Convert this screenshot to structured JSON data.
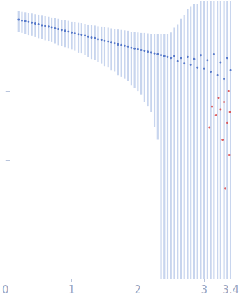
{
  "chart_data": {
    "type": "scatter",
    "log": "y",
    "tick_labels": "x",
    "grid": false,
    "xlim": [
      0,
      3.4
    ],
    "xticks": [
      0,
      1,
      2,
      3
    ],
    "ylim": [
      0.0002,
      2
    ],
    "yticks": [
      0.001,
      0.01,
      0.1,
      1
    ],
    "series": [
      {
        "color": "#3a62c0",
        "x": [
          0.2,
          0.25,
          0.3,
          0.35,
          0.4,
          0.45,
          0.5,
          0.55,
          0.6,
          0.65,
          0.7,
          0.75,
          0.8,
          0.85,
          0.9,
          0.95,
          1.0,
          1.05,
          1.1,
          1.15,
          1.2,
          1.25,
          1.3,
          1.35,
          1.4,
          1.45,
          1.5,
          1.55,
          1.6,
          1.65,
          1.7,
          1.75,
          1.8,
          1.85,
          1.9,
          1.95,
          2.0,
          2.05,
          2.1,
          2.15,
          2.2,
          2.25,
          2.3,
          2.35,
          2.4,
          2.45,
          2.5,
          2.55,
          2.6,
          2.65,
          2.7,
          2.75,
          2.8,
          2.85,
          2.9,
          2.95,
          3.0,
          3.05,
          3.1,
          3.15,
          3.2,
          3.25,
          3.3,
          3.35,
          3.4
        ],
        "values": [
          1.07,
          1.04,
          1.02,
          0.99,
          0.97,
          0.94,
          0.92,
          0.89,
          0.87,
          0.85,
          0.83,
          0.8,
          0.78,
          0.76,
          0.74,
          0.72,
          0.7,
          0.68,
          0.66,
          0.65,
          0.63,
          0.61,
          0.59,
          0.58,
          0.56,
          0.55,
          0.53,
          0.52,
          0.5,
          0.49,
          0.47,
          0.46,
          0.45,
          0.44,
          0.42,
          0.41,
          0.4,
          0.39,
          0.38,
          0.37,
          0.36,
          0.35,
          0.34,
          0.33,
          0.32,
          0.31,
          0.3,
          0.32,
          0.27,
          0.3,
          0.25,
          0.31,
          0.24,
          0.29,
          0.22,
          0.33,
          0.21,
          0.28,
          0.19,
          0.34,
          0.17,
          0.26,
          0.15,
          0.3,
          0.2
        ],
        "errors": [
          0.35,
          0.35,
          0.35,
          0.35,
          0.34,
          0.34,
          0.34,
          0.33,
          0.33,
          0.33,
          0.32,
          0.32,
          0.32,
          0.31,
          0.31,
          0.31,
          0.3,
          0.3,
          0.3,
          0.3,
          0.3,
          0.3,
          0.3,
          0.3,
          0.3,
          0.3,
          0.3,
          0.3,
          0.3,
          0.3,
          0.3,
          0.3,
          0.3,
          0.3,
          0.3,
          0.3,
          0.3,
          0.3,
          0.31,
          0.31,
          0.31,
          0.32,
          0.32,
          0.33,
          0.34,
          0.36,
          0.4,
          0.5,
          0.65,
          0.8,
          1.0,
          1.2,
          1.4,
          1.5,
          1.6,
          1.7,
          1.8,
          1.9,
          1.9,
          1.9,
          1.9,
          1.9,
          1.9,
          1.9,
          1.9
        ]
      },
      {
        "color": "#d93a3a",
        "x": [
          3.08,
          3.12,
          3.18,
          3.22,
          3.25,
          3.28,
          3.3,
          3.32,
          3.35,
          3.37,
          3.38,
          3.39
        ],
        "values": [
          0.03,
          0.06,
          0.045,
          0.08,
          0.055,
          0.02,
          0.07,
          0.004,
          0.035,
          0.1,
          0.012,
          0.05
        ]
      }
    ]
  }
}
